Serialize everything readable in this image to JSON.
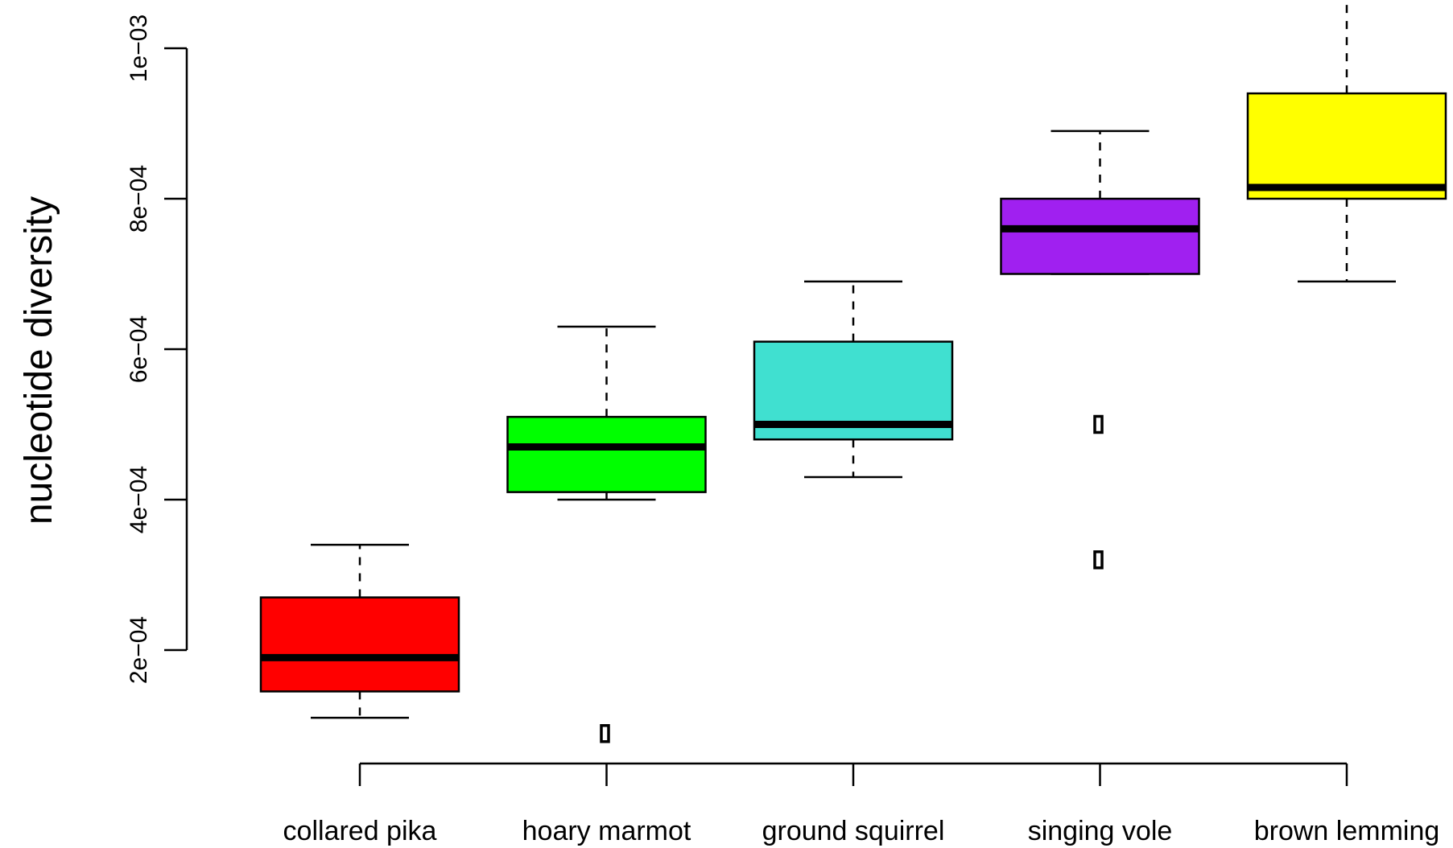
{
  "chart_data": {
    "type": "box",
    "title": "",
    "xlabel": "",
    "ylabel": "nucleotide diversity",
    "ylim": [
      6e-05,
      0.00102
    ],
    "yticks": [
      0.0002,
      0.0004,
      0.0006,
      0.0008,
      0.001
    ],
    "ytick_labels": [
      "2e−04",
      "4e−04",
      "6e−04",
      "8e−04",
      "1e−03"
    ],
    "categories": [
      "collared pika",
      "hoary marmot",
      "ground squirrel",
      "singing vole",
      "brown lemming"
    ],
    "boxes": [
      {
        "category": "collared pika",
        "color": "#ff0000",
        "whisker_low": 0.00011,
        "q1": 0.000145,
        "median": 0.00019,
        "q3": 0.00027,
        "whisker_high": 0.00034,
        "outliers": []
      },
      {
        "category": "hoary marmot",
        "color": "#00ff00",
        "whisker_low": 0.0004,
        "q1": 0.00041,
        "median": 0.00047,
        "q3": 0.00051,
        "whisker_high": 0.00063,
        "outliers": [
          8.9e-05
        ]
      },
      {
        "category": "ground squirrel",
        "color": "#40e0d0",
        "whisker_low": 0.00043,
        "q1": 0.00048,
        "median": 0.0005,
        "q3": 0.00061,
        "whisker_high": 0.00069,
        "outliers": []
      },
      {
        "category": "singing vole",
        "color": "#a020f0",
        "whisker_low": 0.0007,
        "q1": 0.0007,
        "median": 0.00076,
        "q3": 0.0008,
        "whisker_high": 0.00089,
        "outliers": [
          0.0005,
          0.00032
        ]
      },
      {
        "category": "brown lemming",
        "color": "#ffff00",
        "whisker_low": 0.00069,
        "q1": 0.0008,
        "median": 0.000815,
        "q3": 0.00094,
        "whisker_high": 0.0011,
        "outliers": []
      }
    ],
    "grid": false,
    "legend": "none"
  }
}
